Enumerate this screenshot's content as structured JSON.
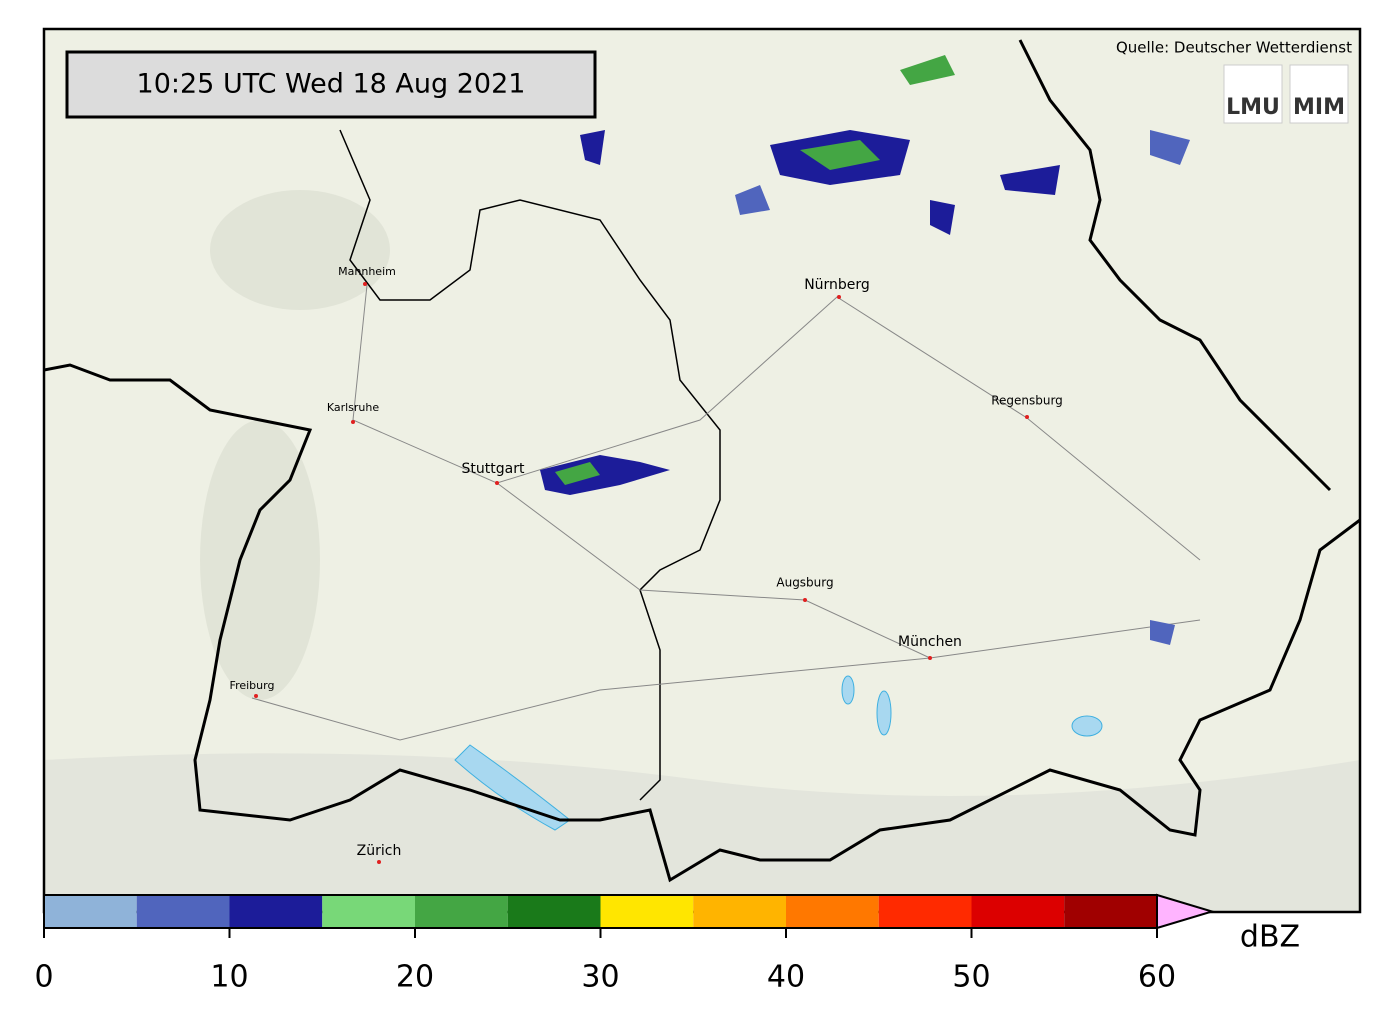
{
  "map": {
    "timestamp": "10:25 UTC  Wed 18 Aug 2021",
    "source": "Quelle: Deutscher Wetterdienst",
    "logos": [
      "LMU",
      "MIM"
    ],
    "cities": [
      "Mannheim",
      "Nürnberg",
      "Karlsruhe",
      "Regensburg",
      "Stuttgart",
      "Augsburg",
      "München",
      "Freiburg",
      "Zürich"
    ]
  },
  "colorbar": {
    "bounds": [
      0,
      5,
      10,
      15,
      20,
      25,
      30,
      35,
      40,
      45,
      50,
      55,
      60
    ],
    "colors": [
      "#8fb3d9",
      "#5065bd",
      "#1c1c99",
      "#78d878",
      "#44a644",
      "#1a7a1a",
      "#ffe600",
      "#ffb400",
      "#ff7800",
      "#ff2a00",
      "#dc0000",
      "#a00000"
    ],
    "extend_color": "#ffb4ff",
    "lim": [
      0,
      60
    ],
    "ticks": [
      0,
      10,
      20,
      30,
      40,
      50,
      60
    ],
    "label": "dBZ"
  }
}
